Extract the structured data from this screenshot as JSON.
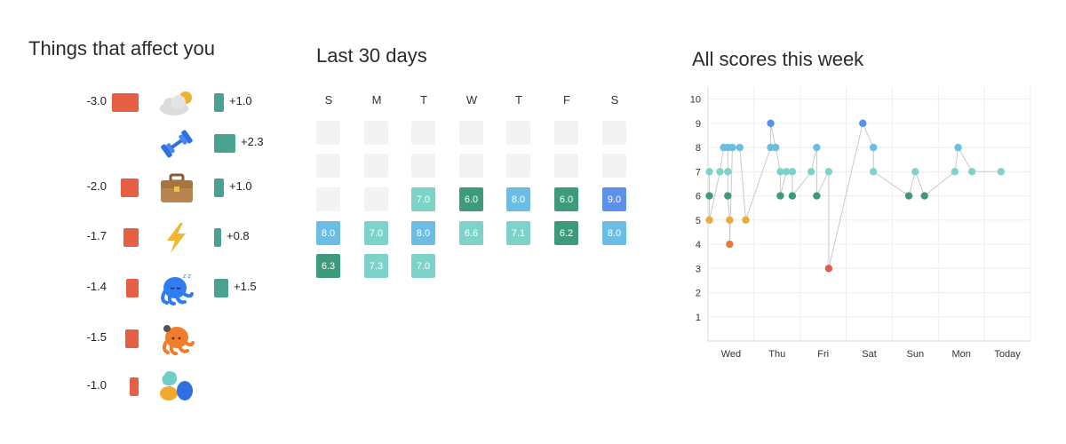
{
  "factors": {
    "title": "Things that affect  you",
    "rows": [
      {
        "icon": "weather-icon",
        "neg": "-3.0",
        "neg_value": -3.0,
        "pos": "+1.0",
        "pos_value": 1.0
      },
      {
        "icon": "exercise-icon",
        "neg": "",
        "neg_value": 0,
        "pos": "+2.3",
        "pos_value": 2.3
      },
      {
        "icon": "work-icon",
        "neg": "-2.0",
        "neg_value": -2.0,
        "pos": "+1.0",
        "pos_value": 1.0
      },
      {
        "icon": "energy-icon",
        "neg": "-1.7",
        "neg_value": -1.7,
        "pos": "+0.8",
        "pos_value": 0.8
      },
      {
        "icon": "sleep-icon",
        "neg": "-1.4",
        "neg_value": -1.4,
        "pos": "+1.5",
        "pos_value": 1.5
      },
      {
        "icon": "stress-icon",
        "neg": "-1.5",
        "neg_value": -1.5,
        "pos": "",
        "pos_value": 0
      },
      {
        "icon": "social-icon",
        "neg": "-1.0",
        "neg_value": -1.0,
        "pos": "",
        "pos_value": 0
      }
    ],
    "colors": {
      "negative": "#e55f44",
      "positive": "#4aa390"
    }
  },
  "calendar": {
    "title": "Last 30 days",
    "days": [
      "S",
      "M",
      "T",
      "W",
      "T",
      "F",
      "S"
    ],
    "weeks": [
      [
        null,
        null,
        null,
        null,
        null,
        null,
        null
      ],
      [
        null,
        null,
        null,
        null,
        null,
        null,
        null
      ],
      [
        null,
        null,
        "7.0",
        "6.0",
        "8.0",
        "6.0",
        "9.0"
      ],
      [
        "8.0",
        "7.0",
        "8.0",
        "6.6",
        "7.1",
        "6.2",
        "8.0"
      ],
      [
        "6.3",
        "7.3",
        "7.0"
      ]
    ]
  },
  "scores": {
    "title": "All scores this week",
    "chart_data": {
      "type": "scatter",
      "title": "All scores this week",
      "xlabel": "",
      "ylabel": "",
      "y_ticks": [
        "1",
        "2",
        "3",
        "4",
        "5",
        "6",
        "7",
        "8",
        "9",
        "10"
      ],
      "ylim": [
        0,
        10.5
      ],
      "x_ticks": [
        "Wed",
        "Thu",
        "Fri",
        "Sat",
        "Sun",
        "Mon",
        "Today"
      ],
      "xlim": [
        -0.5,
        6.5
      ],
      "grid": true,
      "colors": {
        "9": "#5d90e8",
        "8": "#6cbde3",
        "7": "#7dd3c8",
        "6": "#3e9a7d",
        "5": "#e9ab3b",
        "4": "#e4793f",
        "3": "#e05d48",
        "line": "#c9c9c9"
      },
      "points": [
        {
          "x": -0.47,
          "y": 6
        },
        {
          "x": -0.47,
          "y": 7
        },
        {
          "x": -0.47,
          "y": 5
        },
        {
          "x": -0.24,
          "y": 7
        },
        {
          "x": -0.16,
          "y": 8
        },
        {
          "x": -0.07,
          "y": 8
        },
        {
          "x": -0.07,
          "y": 7
        },
        {
          "x": -0.07,
          "y": 6
        },
        {
          "x": -0.03,
          "y": 5
        },
        {
          "x": -0.03,
          "y": 4
        },
        {
          "x": 0.03,
          "y": 8
        },
        {
          "x": 0.19,
          "y": 8
        },
        {
          "x": 0.32,
          "y": 5
        },
        {
          "x": 0.86,
          "y": 8
        },
        {
          "x": 0.86,
          "y": 9
        },
        {
          "x": 0.97,
          "y": 8
        },
        {
          "x": 1.07,
          "y": 7
        },
        {
          "x": 1.07,
          "y": 6
        },
        {
          "x": 1.2,
          "y": 7
        },
        {
          "x": 1.33,
          "y": 7
        },
        {
          "x": 1.33,
          "y": 6
        },
        {
          "x": 1.74,
          "y": 7
        },
        {
          "x": 1.86,
          "y": 8
        },
        {
          "x": 1.86,
          "y": 6
        },
        {
          "x": 2.12,
          "y": 7
        },
        {
          "x": 2.12,
          "y": 3
        },
        {
          "x": 2.86,
          "y": 9
        },
        {
          "x": 3.09,
          "y": 8
        },
        {
          "x": 3.09,
          "y": 7
        },
        {
          "x": 3.86,
          "y": 6
        },
        {
          "x": 4.0,
          "y": 7
        },
        {
          "x": 4.2,
          "y": 6
        },
        {
          "x": 4.86,
          "y": 7
        },
        {
          "x": 4.93,
          "y": 8
        },
        {
          "x": 5.23,
          "y": 7
        },
        {
          "x": 5.86,
          "y": 7
        }
      ]
    }
  }
}
